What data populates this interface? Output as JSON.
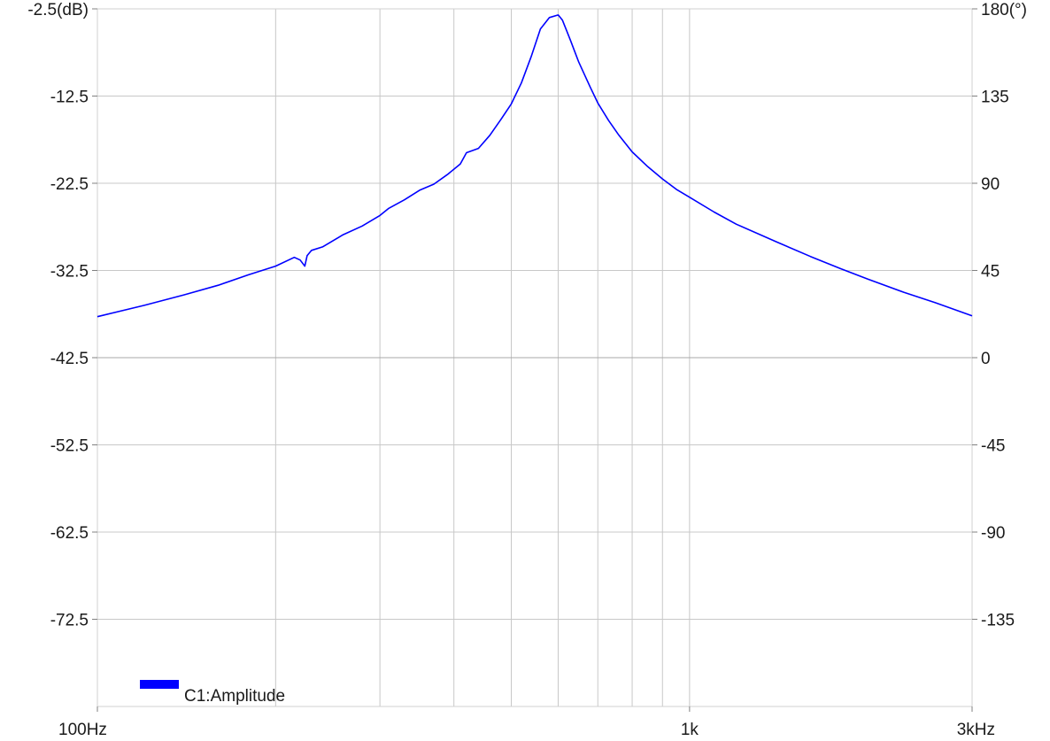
{
  "chart_data": {
    "type": "line",
    "x_scale": "log",
    "xlim": [
      100,
      3000
    ],
    "ylim": [
      -82.5,
      -2.5
    ],
    "y2lim": [
      -180,
      180
    ],
    "grid": true,
    "legend_position": "bottom-left",
    "x_ticks": [
      {
        "value": 100,
        "label": "100Hz"
      },
      {
        "value": 1000,
        "label": "1k"
      },
      {
        "value": 3000,
        "label": "3kHz"
      }
    ],
    "x_gridlines": [
      200,
      300,
      400,
      500,
      600,
      700,
      800,
      900,
      1000
    ],
    "y_ticks": [
      {
        "value": -2.5,
        "label": "-2.5(dB)"
      },
      {
        "value": -12.5,
        "label": "-12.5"
      },
      {
        "value": -22.5,
        "label": "-22.5"
      },
      {
        "value": -32.5,
        "label": "-32.5"
      },
      {
        "value": -42.5,
        "label": "-42.5"
      },
      {
        "value": -52.5,
        "label": "-52.5"
      },
      {
        "value": -62.5,
        "label": "-62.5"
      },
      {
        "value": -72.5,
        "label": "-72.5"
      }
    ],
    "y2_ticks": [
      {
        "value": 180,
        "label": "180(°)"
      },
      {
        "value": 135,
        "label": "135"
      },
      {
        "value": 90,
        "label": "90"
      },
      {
        "value": 45,
        "label": "45"
      },
      {
        "value": 0,
        "label": "0"
      },
      {
        "value": -45,
        "label": "-45"
      },
      {
        "value": -90,
        "label": "-90"
      },
      {
        "value": -135,
        "label": "-135"
      }
    ],
    "series": [
      {
        "name": "C1:Amplitude",
        "color": "#0000ff",
        "x": [
          100,
          120,
          140,
          160,
          180,
          200,
          215,
          220,
          224,
          226,
          230,
          240,
          260,
          280,
          300,
          310,
          330,
          350,
          370,
          390,
          410,
          420,
          440,
          460,
          480,
          500,
          520,
          540,
          560,
          580,
          600,
          610,
          620,
          630,
          640,
          650,
          660,
          680,
          700,
          730,
          760,
          800,
          850,
          900,
          950,
          1000,
          1100,
          1200,
          1400,
          1600,
          1800,
          2000,
          2300,
          2600,
          3000
        ],
        "y": [
          -37.8,
          -36.5,
          -35.3,
          -34.2,
          -33.0,
          -32.0,
          -31.0,
          -31.3,
          -32.0,
          -30.8,
          -30.2,
          -29.8,
          -28.4,
          -27.4,
          -26.2,
          -25.4,
          -24.4,
          -23.3,
          -22.6,
          -21.5,
          -20.3,
          -19.0,
          -18.5,
          -17.0,
          -15.2,
          -13.4,
          -11.0,
          -8.0,
          -4.8,
          -3.5,
          -3.2,
          -3.8,
          -5.0,
          -6.2,
          -7.4,
          -8.6,
          -9.6,
          -11.5,
          -13.3,
          -15.3,
          -17.0,
          -18.9,
          -20.6,
          -22.0,
          -23.2,
          -24.1,
          -25.8,
          -27.2,
          -29.2,
          -30.9,
          -32.3,
          -33.5,
          -35.0,
          -36.2,
          -37.7
        ]
      }
    ]
  }
}
